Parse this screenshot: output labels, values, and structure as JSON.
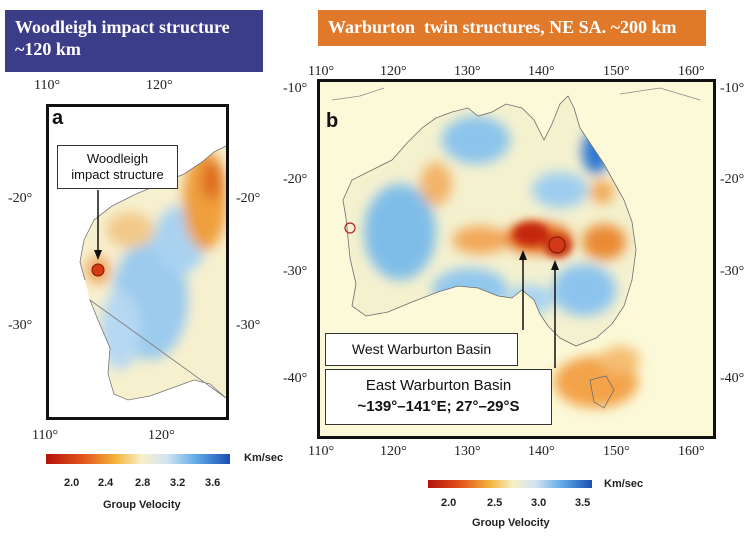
{
  "panel_a": {
    "banner_line1": "Woodleigh impact structure",
    "banner_line2": "~120 km",
    "letter": "a",
    "lon_top": [
      "110°",
      "120°"
    ],
    "lon_bottom": [
      "110°",
      "120°"
    ],
    "lat_left": [
      "-20°",
      "-30°"
    ],
    "lat_right": [
      "-20°",
      "-30°"
    ],
    "callout_line1": "Woodleigh",
    "callout_line2": "impact structure",
    "colorbar": {
      "unit": "Km/sec",
      "ticks": [
        "2.0",
        "2.4",
        "2.8",
        "3.2",
        "3.6"
      ],
      "title": "Group Velocity"
    }
  },
  "panel_b": {
    "banner": "Warburton  twin structures, NE SA. ~200 km",
    "letter": "b",
    "lon_top": [
      "110°",
      "120°",
      "130°",
      "140°",
      "150°",
      "160°"
    ],
    "lon_bottom": [
      "110°",
      "120°",
      "130°",
      "140°",
      "150°",
      "160°"
    ],
    "lat_left": [
      "-10°",
      "-20°",
      "-30°",
      "-40°"
    ],
    "lat_right": [
      "-10°",
      "-20°",
      "-30°",
      "-40°"
    ],
    "callout_west": "West Warburton Basin",
    "callout_east_line1": "East Warburton Basin",
    "callout_east_line2": "~139°–141°E; 27°–29°S",
    "colorbar": {
      "unit": "Km/sec",
      "ticks": [
        "2.0",
        "2.5",
        "3.0",
        "3.5"
      ],
      "title": "Group Velocity"
    }
  },
  "colors": {
    "panel_a_banner": "#3b3d88",
    "panel_b_banner": "#e07a2a",
    "slow_velocity": "#c0200a",
    "mid_velocity": "#f6e7b0",
    "fast_velocity": "#1f6fd0"
  }
}
